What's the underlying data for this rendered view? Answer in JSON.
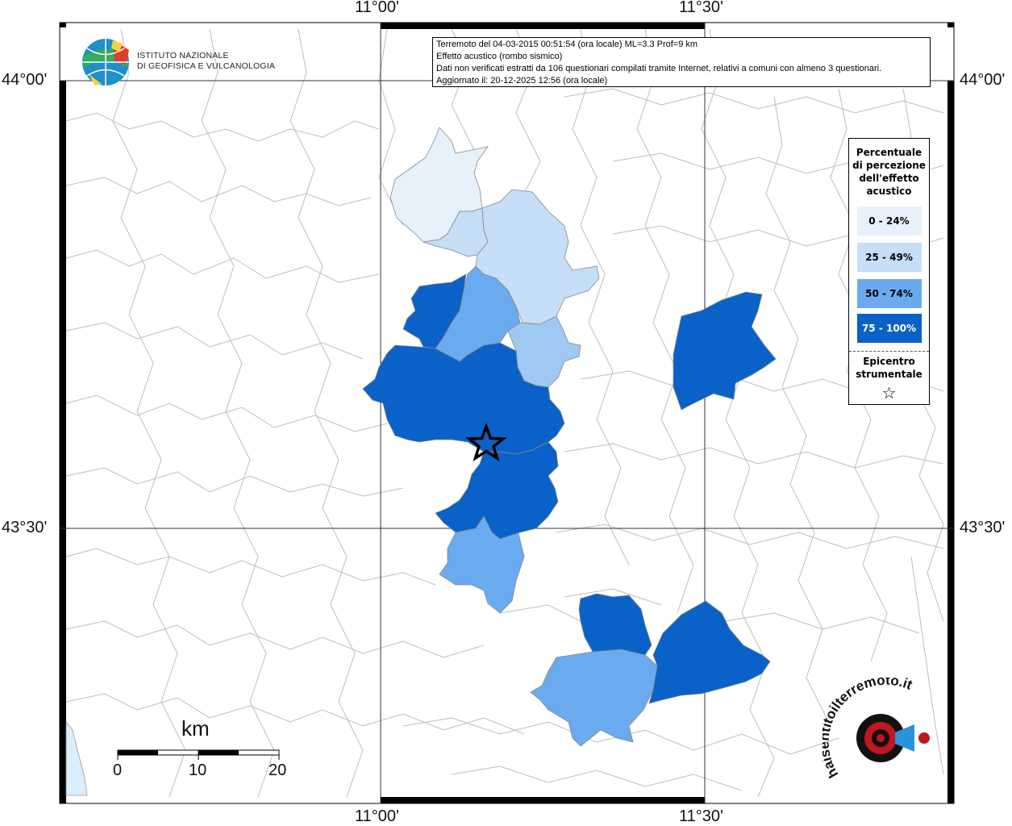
{
  "coords": {
    "top_lon": [
      "11°00'",
      "11°30'"
    ],
    "bottom_lon": [
      "11°00'",
      "11°30'"
    ],
    "left_lat": [
      "44°00'",
      "43°30'"
    ],
    "right_lat": [
      "44°00'",
      "43°30'"
    ]
  },
  "institute": {
    "line1": "ISTITUTO NAZIONALE",
    "line2": "DI GEOFISICA E VULCANOLOGIA"
  },
  "info": {
    "line1": "Terremoto del 04-03-2015 00:51:54 (ora locale) ML=3.3 Prof=9 km",
    "line2": "Effetto acustico (rombo sismico)",
    "line3": "Dati non verificati estratti da 106 questionari compilati tramite Internet, relativi a comuni con almeno 3 questionari.",
    "line4": "Aggiornato il: 20-12-2025 12:56 (ora locale)"
  },
  "legend": {
    "title_lines": [
      "Percentuale",
      "di percezione",
      "dell'effetto",
      "acustico"
    ],
    "items": [
      {
        "label": "0 - 24%",
        "color": "#e6f1fb",
        "text_color": "#000000"
      },
      {
        "label": "25 - 49%",
        "color": "#c7def7",
        "text_color": "#000000"
      },
      {
        "label": "50 - 74%",
        "color": "#6aabef",
        "text_color": "#000000"
      },
      {
        "label": "75 - 100%",
        "color": "#0a62c8",
        "text_color": "#ffffff"
      }
    ],
    "epicenter_lines": [
      "Epicentro",
      "strumentale"
    ]
  },
  "scale": {
    "unit": "km",
    "ticks": [
      "0",
      "10",
      "20"
    ]
  },
  "watermark": {
    "text": "haisentitoilterremoto.it"
  }
}
